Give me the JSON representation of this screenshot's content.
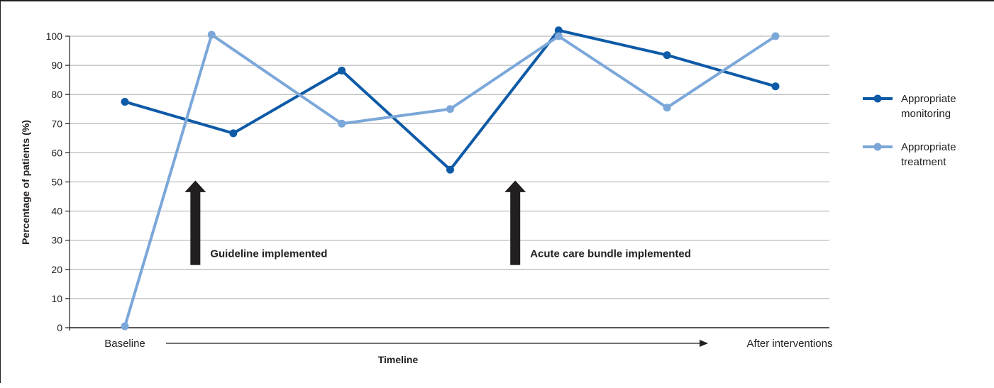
{
  "chart_data": {
    "type": "line",
    "title": "",
    "ylabel": "Percentage of patients (%)",
    "xlabel": "Timeline",
    "ylim": [
      0,
      100
    ],
    "yticks": [
      0,
      10,
      20,
      30,
      40,
      50,
      60,
      70,
      80,
      90,
      100
    ],
    "ytick_labels": [
      "0",
      "10",
      "20",
      "30",
      "40",
      "50",
      "60",
      "70",
      "80",
      "90",
      "100"
    ],
    "x_start_label": "Baseline",
    "x_end_label": "After interventions",
    "grid": true,
    "legend_position": "right",
    "x": [
      1,
      2,
      3,
      4,
      5,
      6,
      7
    ],
    "series": [
      {
        "name_lines": [
          "Appropriate",
          "monitoring"
        ],
        "color": "#0d5aa7",
        "x": [
          1,
          2,
          3,
          4,
          5,
          6,
          7
        ],
        "values": [
          77.5,
          66.7,
          88.2,
          54.2,
          102,
          93.5,
          82.8
        ]
      },
      {
        "name_lines": [
          "Appropriate",
          "treatment"
        ],
        "color": "#7ba7d9",
        "x": [
          1,
          1.8,
          3,
          4,
          5,
          6,
          7
        ],
        "values": [
          0.5,
          100.5,
          70,
          75,
          100,
          75.5,
          100
        ]
      }
    ],
    "annotations": [
      {
        "text": "Guideline implemented",
        "x": 1.65
      },
      {
        "text": "Acute care bundle implemented",
        "x": 4.6
      }
    ]
  }
}
